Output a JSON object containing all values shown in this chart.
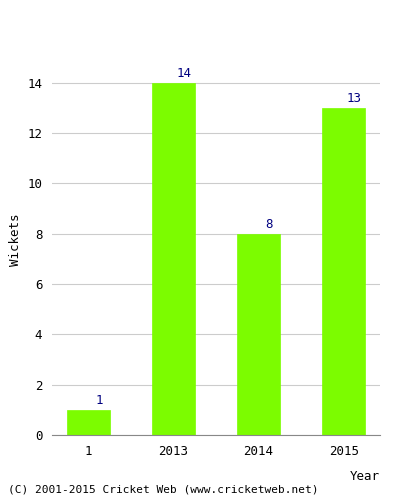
{
  "categories": [
    "1",
    "2013",
    "2014",
    "2015"
  ],
  "values": [
    1,
    14,
    8,
    13
  ],
  "bar_color": "#7CFC00",
  "bar_edge_color": "#7CFC00",
  "xlabel": "Year",
  "ylabel": "Wickets",
  "ylim": [
    0,
    15.5
  ],
  "yticks": [
    0,
    2,
    4,
    6,
    8,
    10,
    12,
    14
  ],
  "label_color": "#000080",
  "label_fontsize": 9,
  "axis_label_fontsize": 9,
  "tick_fontsize": 9,
  "grid_color": "#cccccc",
  "background_color": "#ffffff",
  "footer_text": "(C) 2001-2015 Cricket Web (www.cricketweb.net)",
  "footer_fontsize": 8
}
